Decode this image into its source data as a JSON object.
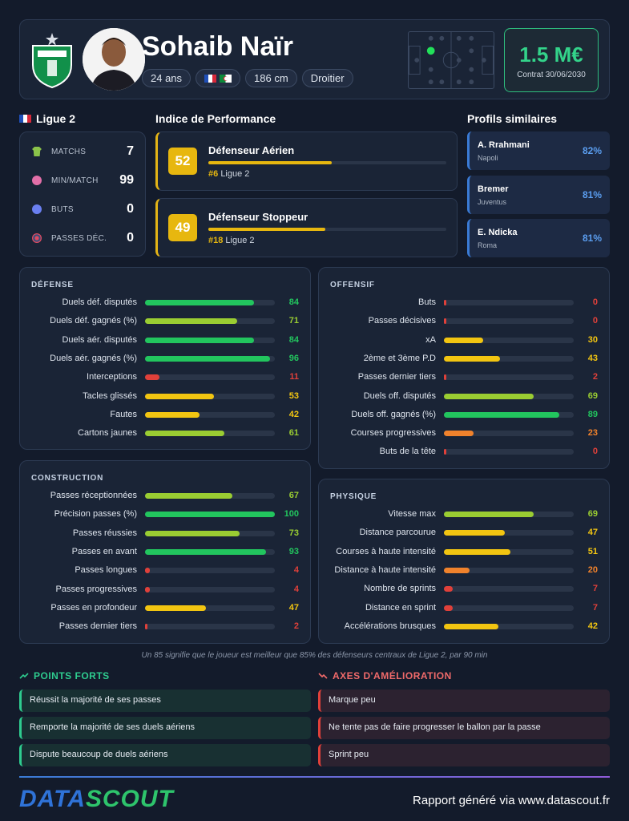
{
  "header": {
    "player_name": "Sohaib Naïr",
    "age": "24 ans",
    "nationality_flags": [
      "france-flag",
      "algeria-flag"
    ],
    "height": "186 cm",
    "foot": "Droitier",
    "market_value": "1.5 M€",
    "contract": "Contrat 30/06/2030"
  },
  "season": {
    "league": "Ligue 2",
    "stats": [
      {
        "icon": "shirt-icon",
        "label": "MATCHS",
        "value": "7"
      },
      {
        "icon": "clock-icon",
        "label": "MIN/MATCH",
        "value": "99"
      },
      {
        "icon": "ball-icon",
        "label": "BUTS",
        "value": "0"
      },
      {
        "icon": "target-icon",
        "label": "PASSES DÉC.",
        "value": "0"
      }
    ]
  },
  "performance": {
    "title": "Indice de Performance",
    "profiles": [
      {
        "score": "52",
        "name": "Défenseur Aérien",
        "rank": "#6",
        "league": "Ligue 2",
        "level": 0.52
      },
      {
        "score": "49",
        "name": "Défenseur Stoppeur",
        "rank": "#18",
        "league": "Ligue 2",
        "level": 0.49
      }
    ]
  },
  "similar": {
    "title": "Profils similaires",
    "players": [
      {
        "name": "A. Rrahmani",
        "club": "Napoli",
        "pct": "82%"
      },
      {
        "name": "Bremer",
        "club": "Juventus",
        "pct": "81%"
      },
      {
        "name": "E. Ndicka",
        "club": "Roma",
        "pct": "81%"
      }
    ]
  },
  "panels": {
    "defense": {
      "title": "DÉFENSE",
      "metrics": [
        {
          "label": "Duels déf. disputés",
          "value": "84"
        },
        {
          "label": "Duels déf. gagnés (%)",
          "value": "71"
        },
        {
          "label": "Duels aér. disputés",
          "value": "84"
        },
        {
          "label": "Duels aér. gagnés (%)",
          "value": "96"
        },
        {
          "label": "Interceptions",
          "value": "11"
        },
        {
          "label": "Tacles glissés",
          "value": "53"
        },
        {
          "label": "Fautes",
          "value": "42"
        },
        {
          "label": "Cartons jaunes",
          "value": "61"
        }
      ]
    },
    "offense": {
      "title": "OFFENSIF",
      "metrics": [
        {
          "label": "Buts",
          "value": "0"
        },
        {
          "label": "Passes décisives",
          "value": "0"
        },
        {
          "label": "xA",
          "value": "30"
        },
        {
          "label": "2ème et 3ème P.D",
          "value": "43"
        },
        {
          "label": "Passes dernier tiers",
          "value": "2"
        },
        {
          "label": "Duels off. disputés",
          "value": "69"
        },
        {
          "label": "Duels off. gagnés (%)",
          "value": "89"
        },
        {
          "label": "Courses progressives",
          "value": "23"
        },
        {
          "label": "Buts de la tête",
          "value": "0"
        }
      ]
    },
    "construction": {
      "title": "CONSTRUCTION",
      "metrics": [
        {
          "label": "Passes réceptionnées",
          "value": "67"
        },
        {
          "label": "Précision passes (%)",
          "value": "100"
        },
        {
          "label": "Passes réussies",
          "value": "73"
        },
        {
          "label": "Passes en avant",
          "value": "93"
        },
        {
          "label": "Passes longues",
          "value": "4"
        },
        {
          "label": "Passes progressives",
          "value": "4"
        },
        {
          "label": "Passes en profondeur",
          "value": "47"
        },
        {
          "label": "Passes dernier tiers",
          "value": "2"
        }
      ]
    },
    "physique": {
      "title": "PHYSIQUE",
      "metrics": [
        {
          "label": "Vitesse max",
          "value": "69"
        },
        {
          "label": "Distance parcourue",
          "value": "47"
        },
        {
          "label": "Courses à haute intensité",
          "value": "51"
        },
        {
          "label": "Distance à haute intensité",
          "value": "20"
        },
        {
          "label": "Nombre de sprints",
          "value": "7"
        },
        {
          "label": "Distance en sprint",
          "value": "7"
        },
        {
          "label": "Accélérations brusques",
          "value": "42"
        }
      ]
    }
  },
  "footnote": "Un 85 signifie que le joueur est meilleur que 85% des défenseurs centraux de Ligue 2, par 90 min",
  "strengths": {
    "title": "POINTS FORTS",
    "items": [
      "Réussit la majorité de ses passes",
      "Remporte la majorité de ses duels aériens",
      "Dispute beaucoup de duels aériens"
    ]
  },
  "improvements": {
    "title": "AXES D'AMÉLIORATION",
    "items": [
      "Marque peu",
      "Ne tente pas de faire progresser le ballon par la passe",
      "Sprint peu"
    ]
  },
  "footer": {
    "logo_part1": "DATA",
    "logo_part2": "SCOUT",
    "report": "Rapport généré via www.datascout.fr"
  },
  "colors": {
    "green": "#22c55e",
    "lime": "#9acd32",
    "yellow": "#f2c511",
    "orange": "#f0822c",
    "red": "#e0403a",
    "accent_gold": "#e7b70f",
    "value_green": "#33d38a"
  }
}
